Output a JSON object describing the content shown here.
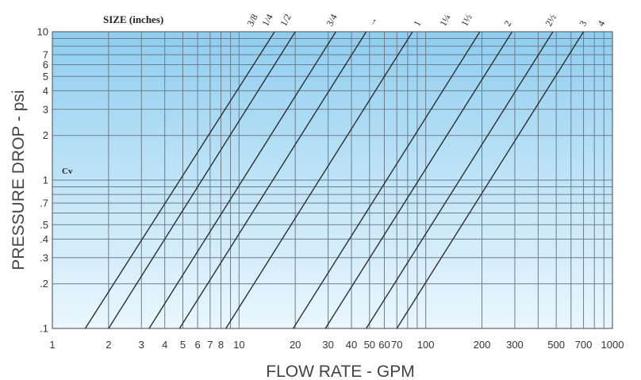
{
  "chart_data": {
    "type": "line",
    "title": "SIZE (inches)",
    "xlabel": "FLOW RATE - GPM",
    "ylabel": "PRESSURE DROP - psi",
    "xscale": "log",
    "yscale": "log",
    "xlim": [
      1,
      1000
    ],
    "ylim": [
      0.1,
      10
    ],
    "grid": true,
    "x_ticks": [
      1,
      2,
      3,
      4,
      5,
      6,
      7,
      8,
      10,
      20,
      30,
      40,
      50,
      60,
      70,
      100,
      200,
      300,
      500,
      700,
      1000
    ],
    "x_tick_labels": [
      "1",
      "2",
      "3",
      "4",
      "5",
      "6",
      "7",
      "8",
      "10",
      "20",
      "30",
      "40",
      "50",
      "60",
      "70",
      "100",
      "200",
      "300",
      "500",
      "700",
      "1000"
    ],
    "y_ticks": [
      0.1,
      0.2,
      0.3,
      0.4,
      0.5,
      0.7,
      1,
      2,
      3,
      4,
      5,
      6,
      7,
      10
    ],
    "y_tick_labels": [
      ".1",
      ".2",
      ".3",
      ".4",
      ".5",
      ".7",
      "1",
      "2",
      "3",
      "4",
      "5",
      "6",
      "7",
      "10"
    ],
    "annotation": "Cv",
    "series": [
      {
        "name": "3/8",
        "points": [
          [
            1.5,
            0.1
          ],
          [
            15.5,
            10
          ]
        ]
      },
      {
        "name": "1/4",
        "points": [
          [
            2.0,
            0.1
          ],
          [
            20.0,
            10
          ]
        ]
      },
      {
        "name": "1/2",
        "points": [
          [
            3.3,
            0.1
          ],
          [
            33.0,
            10
          ]
        ]
      },
      {
        "name": "3/4",
        "points": [
          [
            4.8,
            0.1
          ],
          [
            48.0,
            10
          ]
        ]
      },
      {
        "name": "1",
        "points": [
          [
            8.5,
            0.1
          ],
          [
            85.0,
            10
          ]
        ]
      },
      {
        "name": "1¼",
        "points": [
          [
            19.5,
            0.1
          ],
          [
            195.0,
            10
          ]
        ]
      },
      {
        "name": "1½",
        "points": [
          [
            29.0,
            0.1
          ],
          [
            290.0,
            10
          ]
        ]
      },
      {
        "name": "2",
        "points": [
          [
            48.0,
            0.1
          ],
          [
            480.0,
            10
          ]
        ]
      },
      {
        "name": "2½",
        "points": [
          [
            70.0,
            0.1
          ],
          [
            700.0,
            10
          ]
        ]
      }
    ],
    "size_labels": [
      "3/8",
      "1/4",
      "1/2",
      "3/4",
      "→",
      "1",
      "1¼",
      "1½",
      "2",
      "2½",
      "3",
      "4"
    ]
  }
}
